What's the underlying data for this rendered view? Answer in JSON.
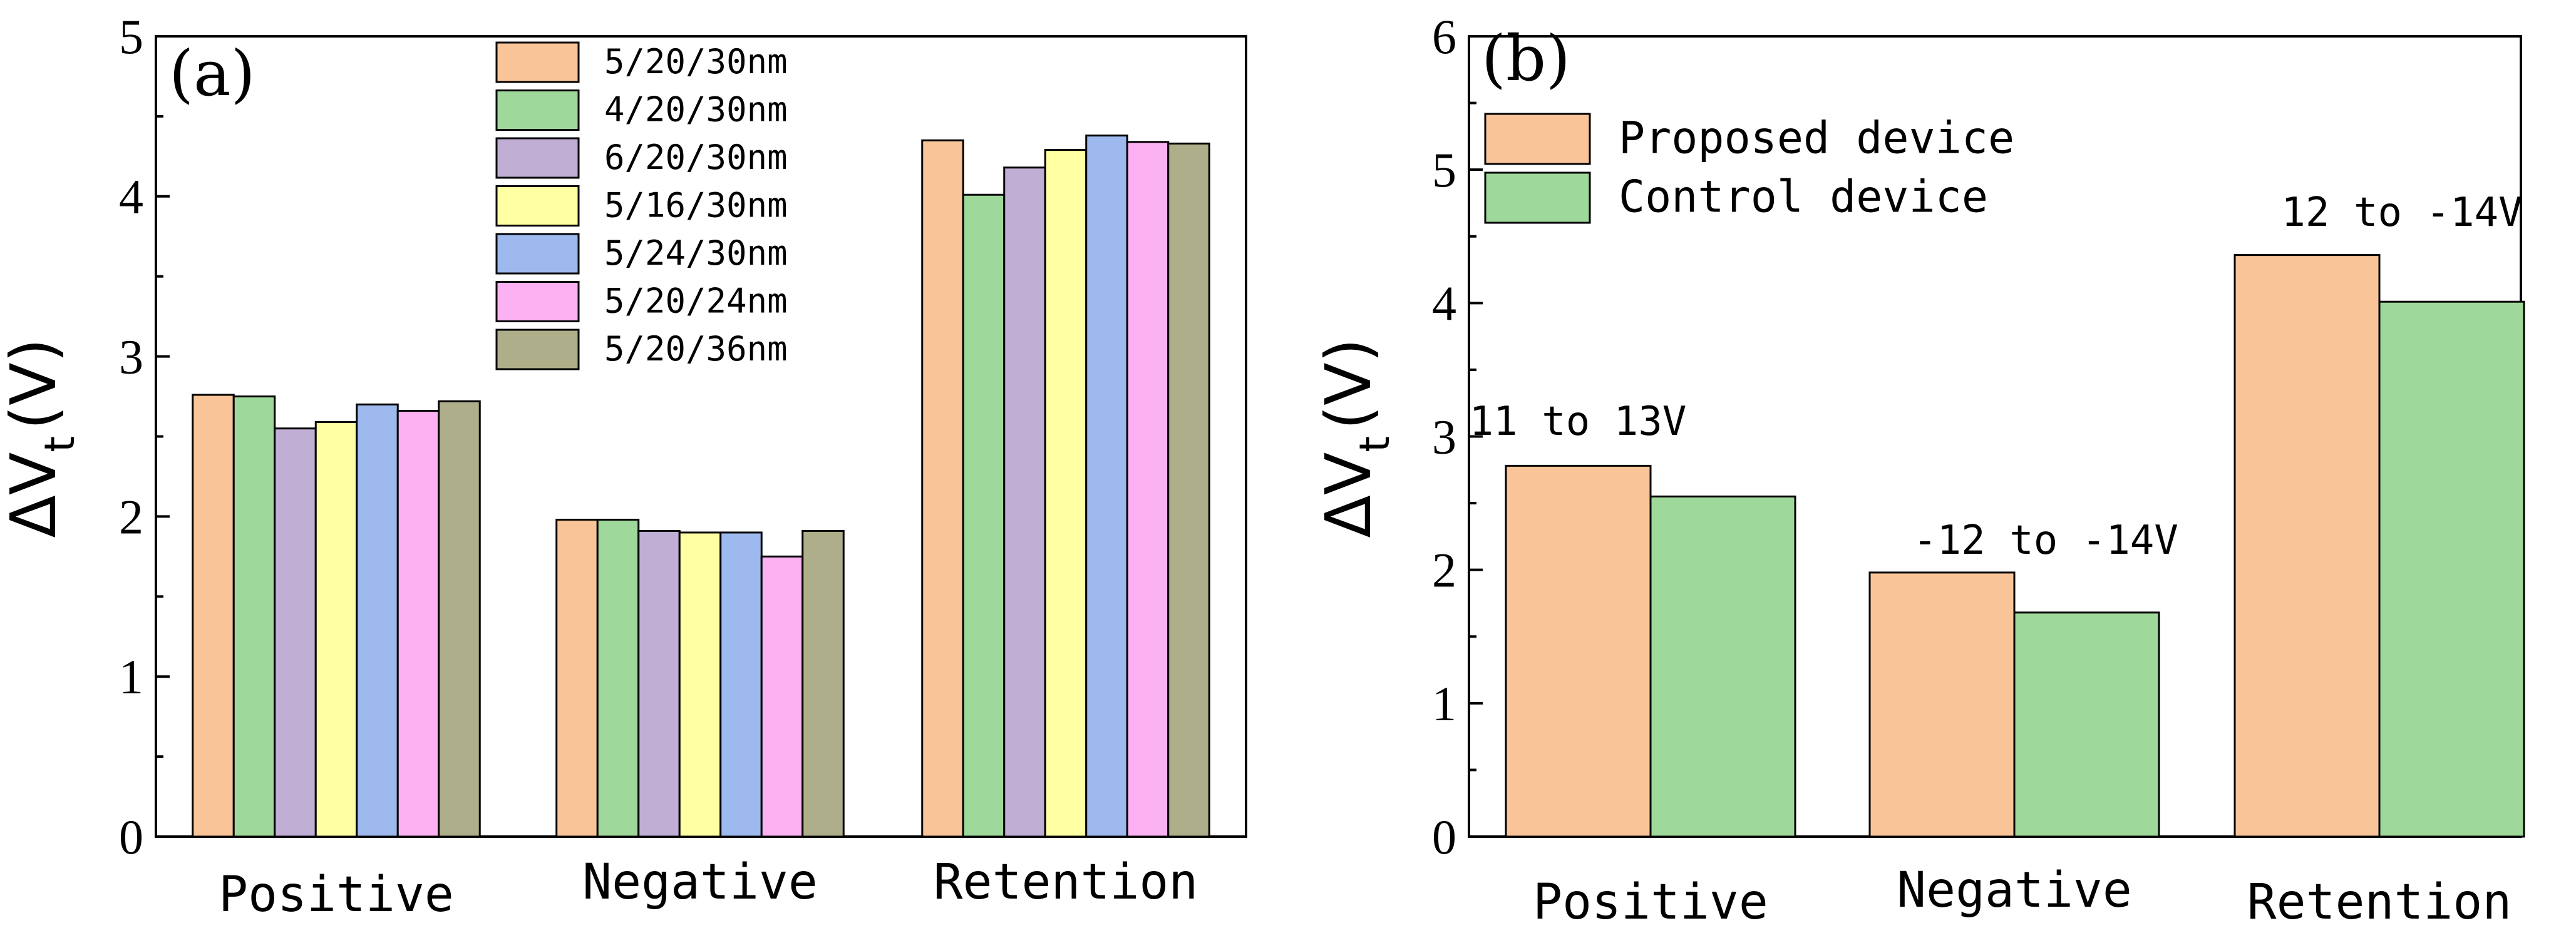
{
  "chart_data": [
    {
      "type": "bar",
      "panel_label": "(a)",
      "ylabel": "ΔV",
      "ylabel_sub": "t",
      "ylabel_unit": "(V)",
      "ylim": [
        0,
        5
      ],
      "yticks": [
        0,
        1,
        2,
        3,
        4,
        5
      ],
      "categories": [
        "Positive",
        "Negative",
        "Retention"
      ],
      "legend_position": "top-center",
      "series": [
        {
          "name": "5/20/30nm",
          "color": "#F9C598",
          "values": [
            2.76,
            1.98,
            4.35
          ]
        },
        {
          "name": "4/20/30nm",
          "color": "#9ED89A",
          "values": [
            2.75,
            1.98,
            4.01
          ]
        },
        {
          "name": "6/20/30nm",
          "color": "#C0AED5",
          "values": [
            2.55,
            1.91,
            4.18
          ]
        },
        {
          "name": "5/16/30nm",
          "color": "#FFFFA3",
          "values": [
            2.59,
            1.9,
            4.29
          ]
        },
        {
          "name": "5/24/30nm",
          "color": "#9DB9EE",
          "values": [
            2.7,
            1.9,
            4.38
          ]
        },
        {
          "name": "5/20/24nm",
          "color": "#FBB1F2",
          "values": [
            2.66,
            1.75,
            4.34
          ]
        },
        {
          "name": "5/20/36nm",
          "color": "#AFAE8B",
          "values": [
            2.72,
            1.91,
            4.33
          ]
        }
      ]
    },
    {
      "type": "bar",
      "panel_label": "(b)",
      "ylabel": "ΔV",
      "ylabel_sub": "t",
      "ylabel_unit": "(V)",
      "ylim": [
        0,
        6
      ],
      "yticks": [
        0,
        1,
        2,
        3,
        4,
        5,
        6
      ],
      "categories": [
        "Positive",
        "Negative",
        "Retention"
      ],
      "legend_position": "top-left",
      "series": [
        {
          "name": "Proposed device",
          "color": "#F9C598",
          "values": [
            2.78,
            1.98,
            4.36
          ]
        },
        {
          "name": "Control device",
          "color": "#9ED89A",
          "values": [
            2.55,
            1.68,
            4.01
          ]
        }
      ],
      "annotations": [
        "11 to 13V",
        "-12 to -14V",
        "12 to -14V"
      ]
    }
  ]
}
